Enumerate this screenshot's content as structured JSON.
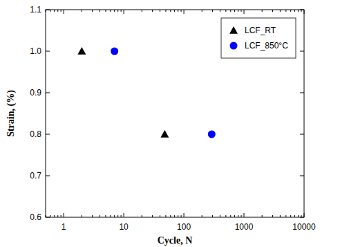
{
  "chart_data": {
    "type": "scatter",
    "x_label": "Cycle, N",
    "y_label": "Strain, (%)",
    "log": "x",
    "grid": false,
    "legend": "upper right",
    "xlim": [
      0.5,
      10000
    ],
    "xticks": [
      1,
      10,
      100,
      1000,
      10000
    ],
    "ylim": [
      0.6,
      1.1
    ],
    "yticks": [
      0.6,
      0.7,
      0.8,
      0.9,
      {
        "value": 1,
        "label": "1.0"
      },
      1.1
    ],
    "series": [
      {
        "name": "LCF_RT",
        "color": "#000000",
        "marker": "triangle",
        "x": [
          2,
          48
        ],
        "values": [
          1,
          0.8
        ]
      },
      {
        "name": "LCF_850°C",
        "color": "#0000ff",
        "marker": "circle",
        "x": [
          7,
          290
        ],
        "values": [
          1,
          0.8
        ]
      }
    ]
  }
}
